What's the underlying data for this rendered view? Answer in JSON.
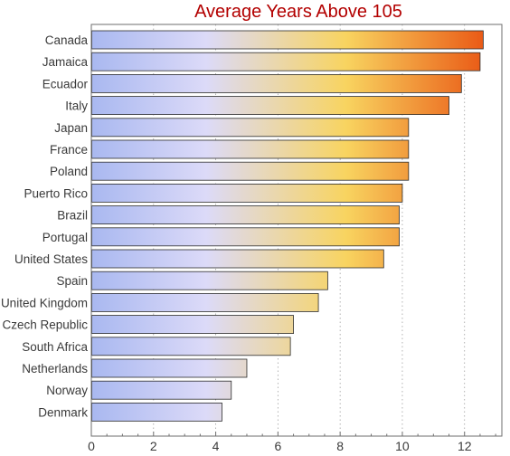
{
  "chart_data": {
    "type": "bar",
    "orientation": "horizontal",
    "title": "Average Years Above 105",
    "xlabel": "",
    "ylabel": "",
    "categories": [
      "Canada",
      "Jamaica",
      "Ecuador",
      "Italy",
      "Japan",
      "France",
      "Poland",
      "Puerto Rico",
      "Brazil",
      "Portugal",
      "United States",
      "Spain",
      "United Kingdom",
      "Czech Republic",
      "South Africa",
      "Netherlands",
      "Norway",
      "Denmark"
    ],
    "values": [
      12.6,
      12.5,
      11.9,
      11.5,
      10.2,
      10.2,
      10.2,
      10.0,
      9.9,
      9.9,
      9.4,
      7.6,
      7.3,
      6.5,
      6.4,
      5.0,
      4.5,
      4.2
    ],
    "xlim": [
      0,
      13.2
    ],
    "xticks": [
      0,
      2,
      4,
      6,
      8,
      10,
      12
    ],
    "grid": "vertical dotted",
    "colors": {
      "low": "#a9b8f0",
      "mid": "#dcdaf8",
      "high_yellow": "#f8d460",
      "high": "#e84a0c",
      "title": "#b30000"
    }
  }
}
